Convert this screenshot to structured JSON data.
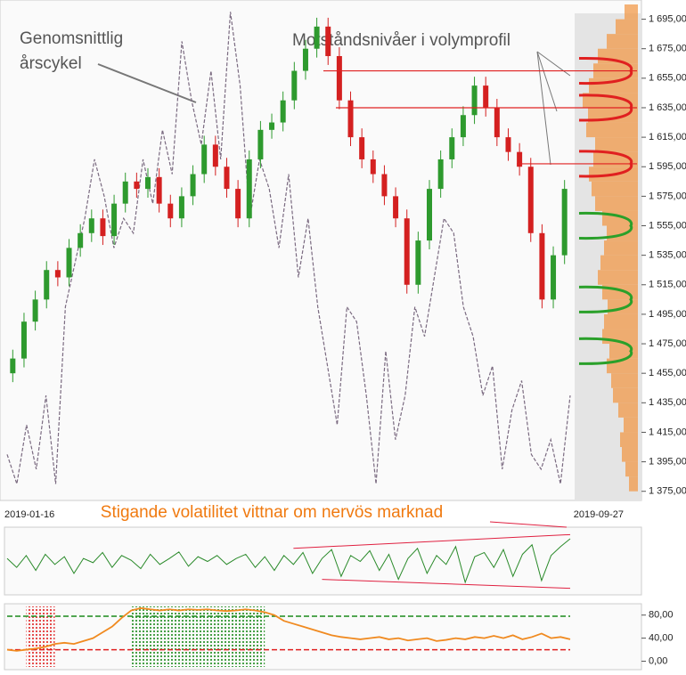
{
  "chart_data": [
    {
      "type": "candlestick",
      "annotations": [
        "Genomsnittlig",
        "årscykel",
        "Motståndsnivåer i volymprofil"
      ],
      "x_labels": [
        "2019-01-16",
        "2019-09-27"
      ],
      "up_color": "#2e9a2e",
      "down_color": "#d42020",
      "open": [
        1455,
        1465,
        1490,
        1505,
        1525,
        1520,
        1540,
        1550,
        1560,
        1548,
        1570,
        1585,
        1580,
        1588,
        1570,
        1560,
        1575,
        1590,
        1610,
        1595,
        1580,
        1560,
        1600,
        1620,
        1625,
        1640,
        1660,
        1675,
        1690,
        1670,
        1640,
        1615,
        1600,
        1590,
        1575,
        1560,
        1515,
        1545,
        1580,
        1600,
        1615,
        1630,
        1650,
        1635,
        1615,
        1605,
        1595,
        1550,
        1505,
        1535
      ],
      "high": [
        1471,
        1496,
        1511,
        1531,
        1531,
        1546,
        1556,
        1566,
        1566,
        1576,
        1591,
        1591,
        1594,
        1594,
        1576,
        1581,
        1596,
        1616,
        1616,
        1601,
        1586,
        1606,
        1626,
        1631,
        1646,
        1666,
        1681,
        1696,
        1696,
        1676,
        1646,
        1621,
        1606,
        1596,
        1581,
        1566,
        1551,
        1586,
        1606,
        1621,
        1636,
        1656,
        1656,
        1641,
        1621,
        1611,
        1601,
        1556,
        1541,
        1586
      ],
      "low": [
        1449,
        1459,
        1484,
        1499,
        1514,
        1514,
        1534,
        1544,
        1542,
        1542,
        1564,
        1574,
        1574,
        1564,
        1554,
        1554,
        1569,
        1584,
        1589,
        1574,
        1554,
        1554,
        1594,
        1614,
        1619,
        1634,
        1654,
        1669,
        1664,
        1634,
        1609,
        1594,
        1584,
        1569,
        1554,
        1509,
        1509,
        1539,
        1574,
        1594,
        1609,
        1624,
        1629,
        1609,
        1599,
        1589,
        1544,
        1499,
        1499,
        1529
      ],
      "close": [
        1465,
        1490,
        1505,
        1525,
        1520,
        1540,
        1550,
        1560,
        1548,
        1570,
        1585,
        1580,
        1588,
        1570,
        1560,
        1575,
        1590,
        1610,
        1595,
        1580,
        1560,
        1600,
        1620,
        1625,
        1640,
        1660,
        1675,
        1690,
        1670,
        1640,
        1615,
        1600,
        1590,
        1575,
        1560,
        1515,
        1545,
        1580,
        1600,
        1615,
        1630,
        1650,
        1635,
        1615,
        1605,
        1595,
        1550,
        1505,
        1535,
        1580
      ],
      "cycle": {
        "color": "#7a6a80",
        "values": [
          1400,
          1380,
          1420,
          1390,
          1440,
          1380,
          1500,
          1530,
          1560,
          1600,
          1575,
          1540,
          1560,
          1550,
          1600,
          1570,
          1620,
          1590,
          1680,
          1640,
          1610,
          1660,
          1600,
          1700,
          1650,
          1560,
          1600,
          1580,
          1540,
          1590,
          1520,
          1560,
          1500,
          1460,
          1420,
          1500,
          1490,
          1440,
          1380,
          1470,
          1410,
          1440,
          1500,
          1480,
          1520,
          1560,
          1550,
          1500,
          1480,
          1440,
          1460,
          1390,
          1430,
          1450,
          1400,
          1390,
          1410,
          1380,
          1440
        ]
      },
      "volume_profile": {
        "color": "#f29a4a",
        "bins": [
          1375,
          1385,
          1395,
          1405,
          1415,
          1425,
          1435,
          1445,
          1455,
          1465,
          1475,
          1485,
          1495,
          1505,
          1515,
          1525,
          1535,
          1545,
          1555,
          1565,
          1575,
          1585,
          1595,
          1605,
          1615,
          1625,
          1635,
          1645,
          1655,
          1665,
          1675,
          1685,
          1695,
          1705
        ],
        "values": [
          10,
          14,
          18,
          20,
          16,
          22,
          28,
          30,
          35,
          32,
          40,
          38,
          34,
          40,
          45,
          42,
          38,
          35,
          40,
          48,
          52,
          55,
          50,
          48,
          58,
          56,
          62,
          55,
          50,
          45,
          35,
          25,
          15
        ]
      },
      "levels": [
        {
          "value": 1660,
          "color": "#e02020"
        },
        {
          "value": 1635,
          "color": "#e02020"
        },
        {
          "value": 1597,
          "color": "#e02020"
        },
        {
          "value": 1555,
          "color": "#2aa02a"
        },
        {
          "value": 1505,
          "color": "#2aa02a"
        },
        {
          "value": 1470,
          "color": "#2aa02a"
        }
      ],
      "ylim": [
        1370,
        1705
      ],
      "yticks": [
        {
          "value": 1375,
          "label": "1 375,00"
        },
        {
          "value": 1395,
          "label": "1 395,00"
        },
        {
          "value": 1415,
          "label": "1 415,00"
        },
        {
          "value": 1435,
          "label": "1 435,00"
        },
        {
          "value": 1455,
          "label": "1 455,00"
        },
        {
          "value": 1475,
          "label": "1 475,00"
        },
        {
          "value": 1495,
          "label": "1 495,00"
        },
        {
          "value": 1515,
          "label": "1 515,00"
        },
        {
          "value": 1535,
          "label": "1 535,00"
        },
        {
          "value": 1555,
          "label": "1 555,00"
        },
        {
          "value": 1575,
          "label": "1 575,00"
        },
        {
          "value": 1595,
          "label": "1 595,00"
        },
        {
          "value": 1615,
          "label": "1 615,00"
        },
        {
          "value": 1635,
          "label": "1 635,00"
        },
        {
          "value": 1655,
          "label": "1 655,00"
        },
        {
          "value": 1675,
          "label": "1 675,00"
        },
        {
          "value": 1695,
          "label": "1 695,00"
        }
      ]
    },
    {
      "type": "line",
      "annotation": "Stigande volatilitet vittnar om nervös marknad",
      "color": "#2a8a2a",
      "trend_color": "#e02040",
      "values": [
        55,
        40,
        60,
        35,
        62,
        45,
        58,
        30,
        55,
        48,
        65,
        40,
        60,
        52,
        38,
        62,
        45,
        55,
        66,
        42,
        58,
        50,
        60,
        45,
        55,
        62,
        40,
        58,
        35,
        60,
        45,
        65,
        30,
        55,
        70,
        25,
        60,
        50,
        68,
        35,
        62,
        20,
        55,
        72,
        30,
        60,
        45,
        75,
        15,
        58,
        65,
        40,
        70,
        25,
        62,
        78,
        18,
        60,
        75,
        88
      ],
      "trend_lines": [
        {
          "start": [
            30,
            72
          ],
          "end": [
            59,
            95
          ]
        },
        {
          "start": [
            33,
            20
          ],
          "end": [
            59,
            5
          ]
        }
      ],
      "ylim": [
        0,
        100
      ]
    },
    {
      "type": "line",
      "color": "#f08a20",
      "values": [
        20,
        18,
        20,
        22,
        25,
        30,
        32,
        30,
        35,
        40,
        50,
        60,
        75,
        88,
        92,
        90,
        88,
        90,
        88,
        90,
        89,
        90,
        88,
        87,
        88,
        90,
        88,
        85,
        80,
        70,
        65,
        60,
        55,
        50,
        45,
        42,
        40,
        38,
        40,
        42,
        38,
        40,
        36,
        38,
        40,
        35,
        37,
        40,
        38,
        42,
        40,
        44,
        40,
        45,
        38,
        42,
        48,
        40,
        42,
        38
      ],
      "levels": [
        {
          "value": 78,
          "color": "#1a8a1a"
        },
        {
          "value": 20,
          "color": "#e02020"
        }
      ],
      "zones": [
        {
          "start": 2,
          "end": 5,
          "color": "#e02020"
        },
        {
          "start": 13,
          "end": 27,
          "color": "#1a8a1a"
        }
      ],
      "ylim": [
        -10,
        95
      ],
      "yticks": [
        {
          "value": 0,
          "label": "0,00"
        },
        {
          "value": 40,
          "label": "40,00"
        },
        {
          "value": 80,
          "label": "80,00"
        }
      ]
    }
  ]
}
